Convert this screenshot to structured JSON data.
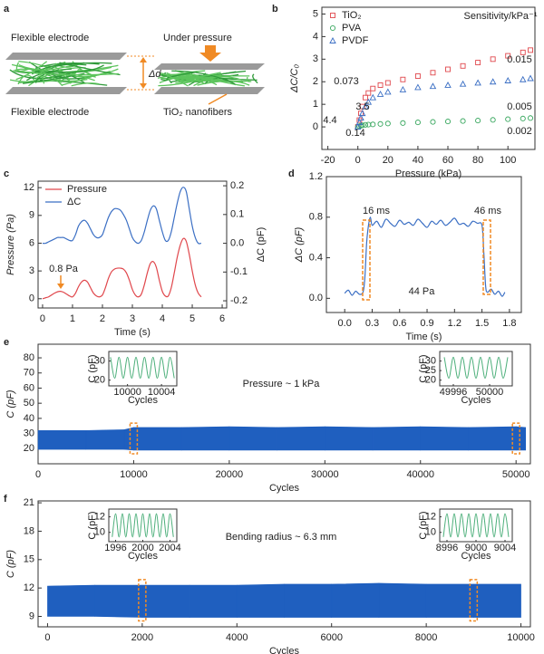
{
  "schematic": {
    "panel": "a",
    "labels": [
      "Flexible electrode",
      "Under pressure",
      "Δd",
      "Flexible electrode",
      "TiO₂ nanofibers"
    ]
  },
  "chart_data": [
    {
      "panel": "b",
      "type": "scatter",
      "xlabel": "Pressure (kPa)",
      "ylabel": "ΔC/C₀",
      "xlim": [
        -24,
        118
      ],
      "ylim": [
        -1,
        5.3
      ],
      "xticks": [
        -20,
        0,
        20,
        40,
        60,
        80,
        100
      ],
      "yticks": [
        0,
        1,
        2,
        3,
        4,
        5
      ],
      "legend": "top-left",
      "x": [
        0,
        1,
        2,
        3,
        5,
        7,
        10,
        15,
        20,
        30,
        40,
        50,
        60,
        70,
        80,
        90,
        100,
        110,
        115
      ],
      "series": [
        {
          "name": "TiO₂",
          "color": "#e0474c",
          "marker": "square",
          "values": [
            0,
            0.3,
            0.6,
            0.9,
            1.3,
            1.5,
            1.7,
            1.85,
            1.95,
            2.1,
            2.25,
            2.4,
            2.55,
            2.7,
            2.85,
            3.0,
            3.15,
            3.3,
            3.4
          ]
        },
        {
          "name": "PVA",
          "color": "#3aa860",
          "marker": "circle",
          "values": [
            0,
            0.03,
            0.05,
            0.07,
            0.09,
            0.1,
            0.11,
            0.13,
            0.15,
            0.17,
            0.2,
            0.22,
            0.24,
            0.26,
            0.28,
            0.31,
            0.34,
            0.37,
            0.39
          ]
        },
        {
          "name": "PVDF",
          "color": "#3b6fc4",
          "marker": "triangle",
          "values": [
            0,
            0.2,
            0.4,
            0.6,
            0.9,
            1.1,
            1.3,
            1.45,
            1.55,
            1.65,
            1.75,
            1.8,
            1.85,
            1.9,
            1.95,
            2.0,
            2.05,
            2.1,
            2.15
          ]
        }
      ],
      "annotations": [
        {
          "text": "Sensitivity/kPa⁻¹",
          "color": "#222"
        },
        {
          "text": "0.073",
          "color": "#e0474c"
        },
        {
          "text": "0.015",
          "color": "#e0474c"
        },
        {
          "text": "3.5",
          "color": "#3b6fc4"
        },
        {
          "text": "0.005",
          "color": "#3b6fc4"
        },
        {
          "text": "4.4",
          "color": "#e0474c"
        },
        {
          "text": "0.14",
          "color": "#3aa860"
        },
        {
          "text": "0.002",
          "color": "#3aa860"
        }
      ]
    },
    {
      "panel": "c",
      "type": "line",
      "xlabel": "Time (s)",
      "ylabel": "Pressure (Pa)",
      "y2label": "ΔC (pF)",
      "xlim": [
        -0.15,
        6.15
      ],
      "ylim": [
        -1,
        12.7
      ],
      "y2lim": [
        -0.225,
        0.216
      ],
      "xticks": [
        0,
        1,
        2,
        3,
        4,
        5,
        6
      ],
      "yticks": [
        0,
        3,
        6,
        9,
        12
      ],
      "y2ticks": [
        -0.2,
        -0.1,
        {
          "value": 0,
          "label": "0.0"
        },
        0.1,
        0.2
      ],
      "legend": "top-left",
      "x": [
        0,
        0.1,
        0.2,
        0.3,
        0.4,
        0.5,
        0.6,
        0.7,
        0.8,
        0.9,
        1.0,
        1.1,
        1.2,
        1.3,
        1.4,
        1.5,
        1.6,
        1.7,
        1.8,
        1.9,
        2.0,
        2.1,
        2.2,
        2.3,
        2.4,
        2.5,
        2.6,
        2.7,
        2.8,
        2.9,
        3.0,
        3.1,
        3.2,
        3.3,
        3.4,
        3.5,
        3.6,
        3.7,
        3.8,
        3.9,
        4.0,
        4.1,
        4.2,
        4.3,
        4.4,
        4.5,
        4.6,
        4.7,
        4.8,
        4.9,
        5.0,
        5.1,
        5.2,
        5.3
      ],
      "series": [
        {
          "name": "Pressure",
          "color": "#e0474c",
          "values": [
            0,
            0.1,
            0.2,
            0.4,
            0.6,
            0.75,
            0.8,
            0.7,
            0.5,
            0.3,
            0.2,
            0.6,
            1.3,
            1.8,
            2.0,
            1.8,
            1.2,
            0.6,
            0.3,
            0.2,
            0.4,
            1.2,
            2.2,
            2.9,
            3.2,
            3.3,
            3.3,
            3.2,
            2.8,
            2.0,
            1.0,
            0.4,
            0.2,
            0.5,
            1.5,
            2.8,
            3.8,
            4.0,
            3.4,
            2.0,
            0.8,
            0.3,
            0.3,
            1.2,
            2.8,
            4.5,
            5.8,
            6.5,
            6.2,
            4.8,
            3.0,
            1.5,
            0.6,
            0.2
          ]
        },
        {
          "name": "ΔC",
          "color": "#3b6fc4",
          "axis": "y2",
          "values": [
            0,
            0,
            0.005,
            0.01,
            0.015,
            0.02,
            0.02,
            0.02,
            0.015,
            0.01,
            0.01,
            0.03,
            0.06,
            0.075,
            0.08,
            0.07,
            0.05,
            0.03,
            0.02,
            0.02,
            0.03,
            0.06,
            0.09,
            0.11,
            0.12,
            0.12,
            0.115,
            0.1,
            0.08,
            0.05,
            0.02,
            0.005,
            0,
            0.01,
            0.04,
            0.08,
            0.115,
            0.13,
            0.12,
            0.08,
            0.04,
            0.01,
            0.01,
            0.04,
            0.09,
            0.14,
            0.18,
            0.195,
            0.18,
            0.12,
            0.06,
            0.02,
            0,
            0
          ]
        }
      ],
      "annotations": [
        {
          "text": "0.8 Pa",
          "color": "#222"
        }
      ]
    },
    {
      "panel": "d",
      "type": "line",
      "xlabel": "Time (s)",
      "ylabel": "ΔC (pF)",
      "xlim": [
        -0.2,
        1.93
      ],
      "ylim": [
        -0.14,
        1.2
      ],
      "xticks": [
        {
          "value": 0,
          "label": "0.0"
        },
        0.3,
        0.6,
        0.9,
        1.2,
        1.5,
        1.8
      ],
      "yticks": [
        {
          "value": 0,
          "label": "0.0"
        },
        0.4,
        0.8,
        1.2
      ],
      "x": [
        0,
        0.04,
        0.08,
        0.12,
        0.16,
        0.2,
        0.22,
        0.24,
        0.26,
        0.28,
        0.3,
        0.35,
        0.4,
        0.45,
        0.5,
        0.55,
        0.6,
        0.65,
        0.7,
        0.75,
        0.8,
        0.85,
        0.9,
        0.95,
        1.0,
        1.05,
        1.1,
        1.15,
        1.2,
        1.25,
        1.3,
        1.35,
        1.4,
        1.45,
        1.5,
        1.52,
        1.54,
        1.56,
        1.6,
        1.64,
        1.68,
        1.72,
        1.75
      ],
      "series": [
        {
          "color": "#3b6fc4",
          "values": [
            0.05,
            0.08,
            0.03,
            0.07,
            0.04,
            0.06,
            0.2,
            0.55,
            0.72,
            0.8,
            0.72,
            0.76,
            0.7,
            0.78,
            0.74,
            0.71,
            0.77,
            0.73,
            0.75,
            0.72,
            0.78,
            0.74,
            0.7,
            0.76,
            0.73,
            0.77,
            0.72,
            0.75,
            0.79,
            0.73,
            0.74,
            0.71,
            0.76,
            0.74,
            0.72,
            0.45,
            0.12,
            0.06,
            0.09,
            0.04,
            0.07,
            0.02,
            0.06
          ]
        }
      ],
      "annotations": [
        {
          "text": "16 ms",
          "color": "#222"
        },
        {
          "text": "46 ms",
          "color": "#222"
        },
        {
          "text": "44 Pa",
          "color": "#222"
        }
      ]
    },
    {
      "panel": "e",
      "type": "band",
      "xlabel": "Cycles",
      "ylabel": "C (pF)",
      "xlim": [
        0,
        51500
      ],
      "ylim": [
        10,
        89
      ],
      "xticks": [
        0,
        10000,
        20000,
        30000,
        40000,
        50000
      ],
      "yticks": [
        20,
        30,
        40,
        50,
        60,
        70,
        80
      ],
      "x": [
        0,
        5000,
        9000,
        10000,
        15000,
        20000,
        25000,
        30000,
        35000,
        40000,
        45000,
        50000,
        51000
      ],
      "upper": [
        32,
        32,
        32.5,
        34,
        34,
        34.5,
        34,
        34.5,
        34,
        34.5,
        34,
        34.5,
        34
      ],
      "lower": [
        19.5,
        19.5,
        19.5,
        19,
        19,
        19,
        19,
        19,
        19,
        19,
        19,
        19,
        19
      ],
      "color": "#1f5fbf",
      "highlight_x": [
        10000,
        50000
      ],
      "annotations": [
        {
          "text": "Pressure ~ 1 kPa",
          "color": "#222"
        }
      ],
      "insets": [
        {
          "type": "line",
          "xlabel": "Cycles",
          "ylabel": "C (pF)",
          "xlim": [
            9997.8,
            10005.8
          ],
          "ylim": [
            17,
            35
          ],
          "xticks": [
            10000,
            10004
          ],
          "yticks": [
            20,
            30
          ],
          "x": [
            9998,
            9998.5,
            9999,
            9999.5,
            10000,
            10000.5,
            10001,
            10001.5,
            10002,
            10002.5,
            10003,
            10003.5,
            10004,
            10004.5,
            10005,
            10005.5
          ],
          "series": [
            {
              "color": "#4caf7a",
              "values": [
                32,
                21,
                32,
                21,
                32,
                21,
                32,
                21,
                32,
                21,
                32,
                21,
                32,
                21,
                32,
                21
              ]
            }
          ]
        },
        {
          "type": "line",
          "xlabel": "Cycles",
          "ylabel": "C (pF)",
          "xlim": [
            49994.5,
            50002.5
          ],
          "ylim": [
            17,
            35
          ],
          "xticks": [
            49996,
            50000
          ],
          "yticks": [
            20,
            25,
            30
          ],
          "x": [
            49995,
            49995.5,
            49996,
            49996.5,
            49997,
            49997.5,
            49998,
            49998.5,
            49999,
            49999.5,
            50000,
            50000.5,
            50001,
            50001.5,
            50002
          ],
          "series": [
            {
              "color": "#4caf7a",
              "values": [
                32,
                21,
                32,
                21,
                32,
                21,
                32,
                21,
                32,
                21,
                32,
                21,
                32,
                21,
                32
              ]
            }
          ]
        }
      ]
    },
    {
      "panel": "f",
      "type": "band",
      "xlabel": "Cycles",
      "ylabel": "C (pF)",
      "xlim": [
        -200,
        10200
      ],
      "ylim": [
        7.9,
        21.2
      ],
      "xticks": [
        0,
        2000,
        4000,
        6000,
        8000,
        10000
      ],
      "yticks": [
        9,
        12,
        15,
        18,
        21
      ],
      "x": [
        0,
        1000,
        2000,
        3000,
        4000,
        5000,
        6000,
        7000,
        8000,
        9000,
        10000
      ],
      "upper": [
        12.2,
        12.3,
        12.3,
        12.3,
        12.3,
        12.4,
        12.4,
        12.5,
        12.4,
        12.4,
        12.4
      ],
      "lower": [
        9,
        9,
        8.9,
        8.9,
        8.9,
        8.9,
        8.9,
        8.9,
        8.9,
        8.9,
        8.9
      ],
      "color": "#1f5fbf",
      "highlight_x": [
        2000,
        9000
      ],
      "annotations": [
        {
          "text": "Bending radius ~ 6.3 mm",
          "color": "#222"
        }
      ],
      "insets": [
        {
          "type": "line",
          "xlabel": "Cycles",
          "ylabel": "C (pF)",
          "xlim": [
            1995,
            2005
          ],
          "ylim": [
            8.8,
            13
          ],
          "xticks": [
            1996,
            2000,
            2004
          ],
          "yticks": [
            10,
            12
          ],
          "x": [
            1995.5,
            1996,
            1996.5,
            1997,
            1997.5,
            1998,
            1998.5,
            1999,
            1999.5,
            2000,
            2000.5,
            2001,
            2001.5,
            2002,
            2002.5,
            2003,
            2003.5,
            2004,
            2004.5
          ],
          "series": [
            {
              "color": "#4caf7a",
              "values": [
                9.4,
                12.4,
                9.4,
                12.4,
                9.4,
                12.4,
                9.4,
                12.4,
                9.4,
                12.4,
                9.4,
                12.4,
                9.4,
                12.4,
                9.4,
                12.4,
                9.4,
                12.4,
                9.4
              ]
            }
          ]
        },
        {
          "type": "line",
          "xlabel": "Cycles",
          "ylabel": "C (pF)",
          "xlim": [
            8995,
            9005
          ],
          "ylim": [
            8.8,
            13
          ],
          "xticks": [
            8996,
            9000,
            9004
          ],
          "yticks": [
            10,
            12
          ],
          "x": [
            8995.5,
            8996,
            8996.5,
            8997,
            8997.5,
            8998,
            8998.5,
            8999,
            8999.5,
            9000,
            9000.5,
            9001,
            9001.5,
            9002,
            9002.5,
            9003,
            9003.5,
            9004,
            9004.5
          ],
          "series": [
            {
              "color": "#4caf7a",
              "values": [
                9.4,
                12.4,
                9.4,
                12.4,
                9.4,
                12.4,
                9.4,
                12.4,
                9.4,
                12.4,
                9.4,
                12.4,
                9.4,
                12.4,
                9.4,
                12.4,
                9.4,
                12.4,
                9.4
              ]
            }
          ]
        }
      ]
    }
  ]
}
